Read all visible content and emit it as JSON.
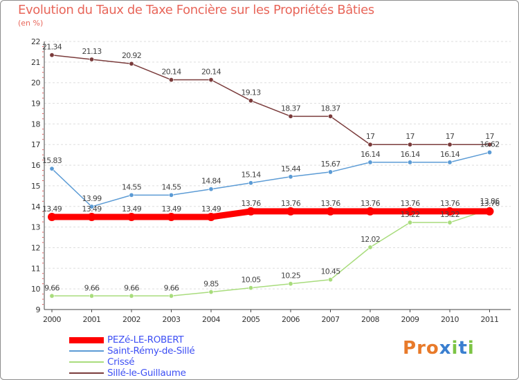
{
  "chart_data": {
    "type": "line",
    "title": "Evolution du Taux de Taxe Foncière sur les Propriétés Bâties",
    "subtitle": "(en %)",
    "x": [
      "2000",
      "2001",
      "2002",
      "2003",
      "2004",
      "2005",
      "2006",
      "2007",
      "2008",
      "2009",
      "2010",
      "2011"
    ],
    "y_ticks": [
      "9",
      "10",
      "11",
      "12",
      "13",
      "14",
      "15",
      "16",
      "17",
      "18",
      "19",
      "20",
      "21",
      "22"
    ],
    "ylim": [
      9,
      22
    ],
    "grid": "horizontal",
    "series": [
      {
        "name": "PEZé-LE-ROBERT",
        "color": "#ff0000",
        "values": [
          13.49,
          13.49,
          13.49,
          13.49,
          13.49,
          13.76,
          13.76,
          13.76,
          13.76,
          13.76,
          13.76,
          13.76
        ],
        "labels": [
          "13.49",
          "13.49",
          "13.49",
          "13.49",
          "13.49",
          "13.76",
          "13.76",
          "13.76",
          "13.76",
          "13.76",
          "13.76",
          "13.76"
        ]
      },
      {
        "name": "Saint-Rémy-de-Sillé",
        "color": "#5b9bd5",
        "values": [
          15.83,
          13.99,
          14.55,
          14.55,
          14.84,
          15.14,
          15.44,
          15.67,
          16.14,
          16.14,
          16.14,
          16.62
        ],
        "labels": [
          "15.83",
          "13.99",
          "14.55",
          "14.55",
          "14.84",
          "15.14",
          "15.44",
          "15.67",
          "16.14",
          "16.14",
          "16.14",
          "16.62"
        ]
      },
      {
        "name": "Crissé",
        "color": "#a8dc7c",
        "values": [
          9.66,
          9.66,
          9.66,
          9.66,
          9.85,
          10.05,
          10.25,
          10.45,
          12.02,
          13.22,
          13.22,
          13.86
        ],
        "labels": [
          "9.66",
          "9.66",
          "9.66",
          "9.66",
          "9.85",
          "10.05",
          "10.25",
          "10.45",
          "12.02",
          "13.22",
          "13.22",
          "13.86"
        ]
      },
      {
        "name": "Sillé-le-Guillaume",
        "color": "#7a3b3b",
        "values": [
          21.34,
          21.13,
          20.92,
          20.14,
          20.14,
          19.13,
          18.37,
          18.37,
          17,
          17,
          17,
          17
        ],
        "labels": [
          "21.34",
          "21.13",
          "20.92",
          "20.14",
          "20.14",
          "19.13",
          "18.37",
          "18.37",
          "17",
          "17",
          "17",
          "17"
        ]
      }
    ],
    "legend_position": "bottom-left"
  },
  "logo": {
    "text": "Proxiti",
    "colors": [
      "#e87a2a",
      "#e87a2a",
      "#e87a2a",
      "#3a7fd0",
      "#7cc444",
      "#3a7fd0",
      "#7cc444"
    ]
  }
}
